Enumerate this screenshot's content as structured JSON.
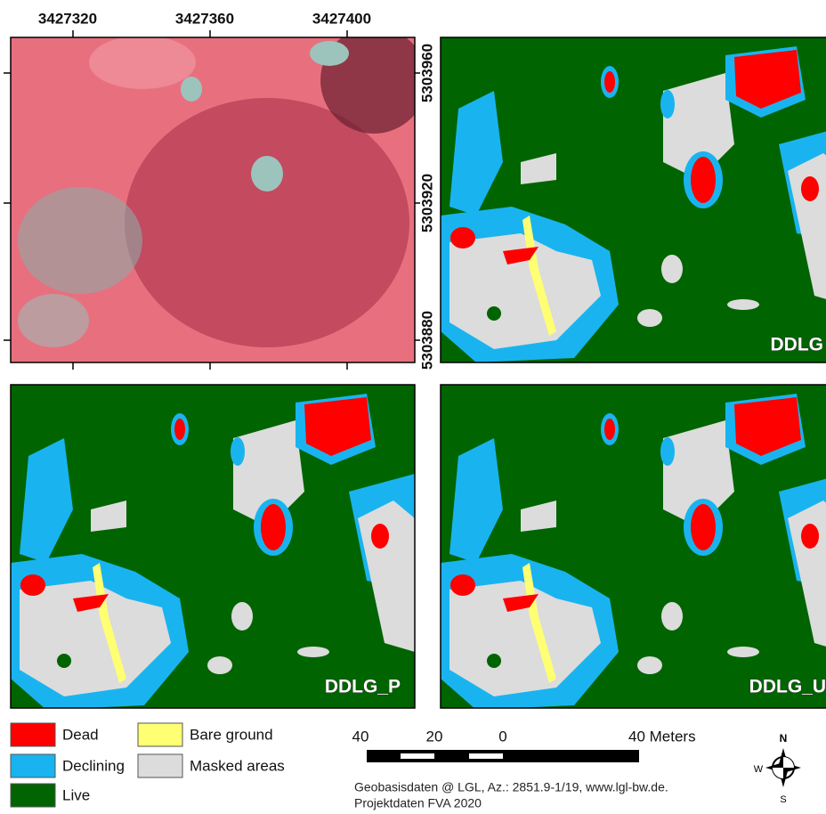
{
  "map": {
    "x_coords": [
      3427320,
      3427360,
      3427400
    ],
    "y_coords": [
      5303960,
      5303920,
      5303880
    ],
    "panels": [
      "DDLG",
      "DDLG_P",
      "DDLG_U"
    ],
    "legend": [
      {
        "label": "Dead",
        "color": "#ff0000"
      },
      {
        "label": "Declining",
        "color": "#19b4f0"
      },
      {
        "label": "Live",
        "color": "#006400"
      },
      {
        "label": "Bare ground",
        "color": "#ffff73"
      },
      {
        "label": "Masked areas",
        "color": "#dcdcdc"
      }
    ],
    "scale_bar": [
      "40",
      "20",
      "0",
      "40 Meters"
    ],
    "compass": [
      "N",
      "W",
      "S"
    ],
    "credits": [
      "Geobasisdaten @ LGL, Az.: 2851.9-1/19,  www.lgl-bw.de.",
      "Projektdaten FVA 2020"
    ]
  }
}
